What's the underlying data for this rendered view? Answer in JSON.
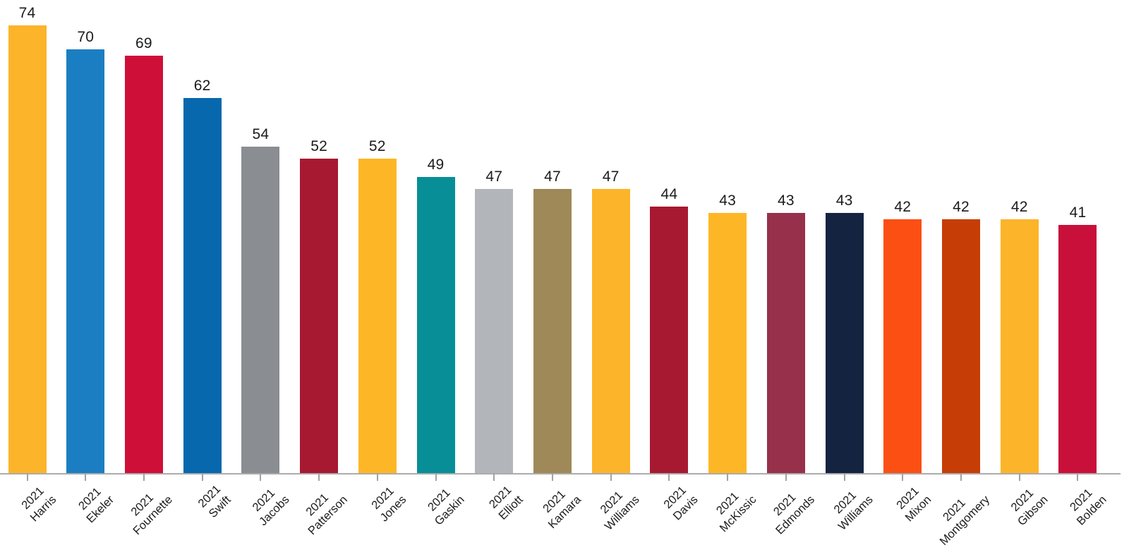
{
  "chart_data": {
    "type": "bar",
    "title": "",
    "xlabel": "",
    "ylabel": "",
    "ylim": [
      0,
      78
    ],
    "grid": false,
    "legend": false,
    "value_labels_shown": true,
    "x_tick_rotation_deg": -45,
    "categories": [
      "2021 Harris",
      "2021 Ekeler",
      "2021 Fournette",
      "2021 Swift",
      "2021 Jacobs",
      "2021 Patterson",
      "2021 Jones",
      "2021 Gaskin",
      "2021 Elliott",
      "2021 Kamara",
      "2021 Williams",
      "2021 Davis",
      "2021 McKissic",
      "2021 Edmonds",
      "2021 Williams",
      "2021 Mixon",
      "2021 Montgomery",
      "2021 Gibson",
      "2021 Bolden"
    ],
    "values": [
      74,
      70,
      69,
      62,
      54,
      52,
      52,
      49,
      47,
      47,
      47,
      44,
      43,
      43,
      43,
      42,
      42,
      42,
      41
    ],
    "bars": [
      {
        "year": "2021",
        "player": "Harris",
        "value": 74,
        "color": "#FCB42A"
      },
      {
        "year": "2021",
        "player": "Ekeler",
        "value": 70,
        "color": "#1B7EC2"
      },
      {
        "year": "2021",
        "player": "Fournette",
        "value": 69,
        "color": "#CE1039"
      },
      {
        "year": "2021",
        "player": "Swift",
        "value": 62,
        "color": "#0768AD"
      },
      {
        "year": "2021",
        "player": "Jacobs",
        "value": 54,
        "color": "#8A8D92"
      },
      {
        "year": "2021",
        "player": "Patterson",
        "value": 52,
        "color": "#A71930"
      },
      {
        "year": "2021",
        "player": "Jones",
        "value": 52,
        "color": "#FDB726"
      },
      {
        "year": "2021",
        "player": "Gaskin",
        "value": 49,
        "color": "#088E97"
      },
      {
        "year": "2021",
        "player": "Elliott",
        "value": 47,
        "color": "#B2B6BB"
      },
      {
        "year": "2021",
        "player": "Kamara",
        "value": 47,
        "color": "#9F8958"
      },
      {
        "year": "2021",
        "player": "Williams",
        "value": 47,
        "color": "#FCB42A"
      },
      {
        "year": "2021",
        "player": "Davis",
        "value": 44,
        "color": "#A71930"
      },
      {
        "year": "2021",
        "player": "McKissic",
        "value": 43,
        "color": "#FDB726"
      },
      {
        "year": "2021",
        "player": "Edmonds",
        "value": 43,
        "color": "#97304A"
      },
      {
        "year": "2021",
        "player": "Williams",
        "value": 43,
        "color": "#142440"
      },
      {
        "year": "2021",
        "player": "Mixon",
        "value": 42,
        "color": "#FB4F14"
      },
      {
        "year": "2021",
        "player": "Montgomery",
        "value": 42,
        "color": "#C63E06"
      },
      {
        "year": "2021",
        "player": "Gibson",
        "value": 42,
        "color": "#FCB42A"
      },
      {
        "year": "2021",
        "player": "Bolden",
        "value": 41,
        "color": "#C8103B"
      }
    ]
  },
  "colors": {
    "background": "#FFFFFF",
    "axis_line": "#ACACAC",
    "tick_mark": "#A2A2A2",
    "value_text": "#1B1B1B",
    "tick_label_text": "#1C1C1C"
  }
}
